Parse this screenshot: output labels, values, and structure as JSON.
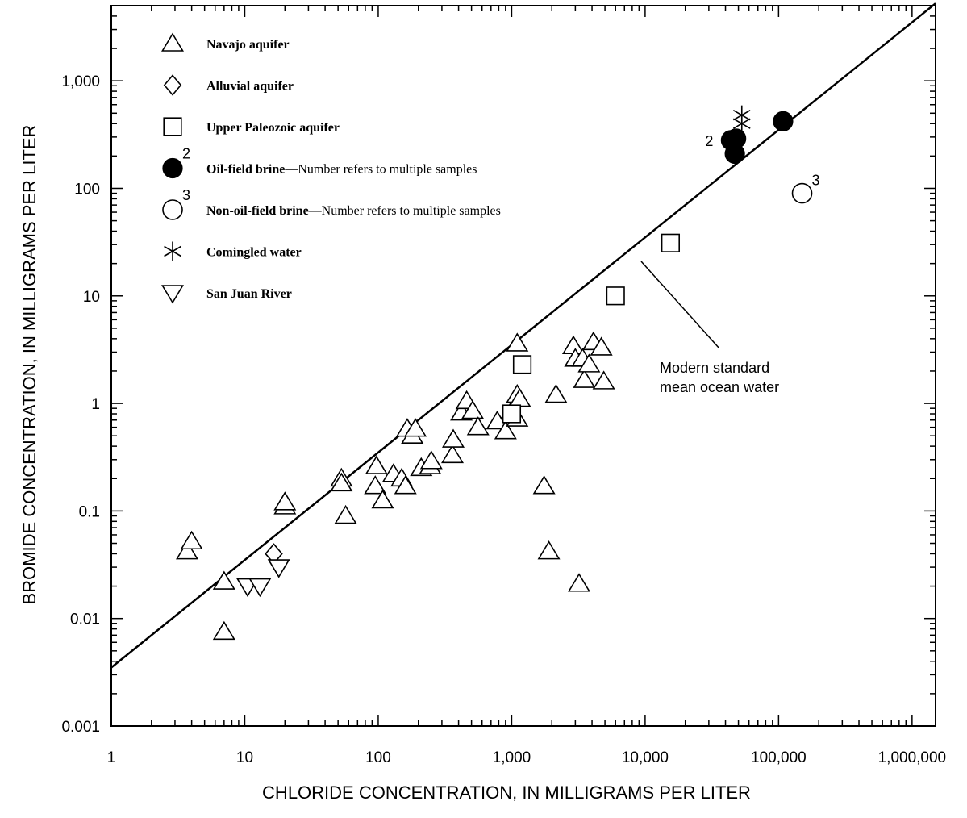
{
  "chart_data": {
    "type": "scatter",
    "xscale": "log",
    "yscale": "log",
    "xlim": [
      1,
      1500000
    ],
    "ylim": [
      0.001,
      5000
    ],
    "xlabel": "CHLORIDE CONCENTRATION, IN MILLIGRAMS PER LITER",
    "ylabel": "BROMIDE CONCENTRATION, IN MILLIGRAMS PER LITER",
    "x_ticks": [
      {
        "value": 1,
        "label": "1"
      },
      {
        "value": 10,
        "label": "10"
      },
      {
        "value": 100,
        "label": "100"
      },
      {
        "value": 1000,
        "label": "1,000"
      },
      {
        "value": 10000,
        "label": "10,000"
      },
      {
        "value": 100000,
        "label": "100,000"
      },
      {
        "value": 1000000,
        "label": "1,000,000"
      }
    ],
    "y_ticks": [
      {
        "value": 0.001,
        "label": "0.001"
      },
      {
        "value": 0.01,
        "label": "0.01"
      },
      {
        "value": 0.1,
        "label": "0.1"
      },
      {
        "value": 1,
        "label": "1"
      },
      {
        "value": 10,
        "label": "10"
      },
      {
        "value": 100,
        "label": "100"
      },
      {
        "value": 1000,
        "label": "1,000"
      }
    ],
    "grid": false,
    "legend_placement": "top-left",
    "reference_line": {
      "label_line1": "Modern standard",
      "label_line2": "mean ocean water",
      "x": [
        1,
        1500000
      ],
      "y": [
        0.0035,
        5250
      ]
    },
    "series": [
      {
        "name": "Navajo aquifer",
        "name_suffix": "",
        "marker": "triangle-up",
        "points": [
          [
            3.7,
            0.042
          ],
          [
            4,
            0.052
          ],
          [
            7,
            0.022
          ],
          [
            7,
            0.0075
          ],
          [
            20,
            0.11
          ],
          [
            20,
            0.12
          ],
          [
            53,
            0.2
          ],
          [
            53,
            0.18
          ],
          [
            57,
            0.09
          ],
          [
            95,
            0.17
          ],
          [
            97,
            0.26
          ],
          [
            108,
            0.125
          ],
          [
            130,
            0.22
          ],
          [
            150,
            0.2
          ],
          [
            160,
            0.17
          ],
          [
            165,
            0.58
          ],
          [
            180,
            0.5
          ],
          [
            190,
            0.58
          ],
          [
            210,
            0.25
          ],
          [
            245,
            0.26
          ],
          [
            250,
            0.29
          ],
          [
            360,
            0.33
          ],
          [
            365,
            0.46
          ],
          [
            420,
            0.82
          ],
          [
            460,
            1.05
          ],
          [
            510,
            0.85
          ],
          [
            560,
            0.6
          ],
          [
            780,
            0.68
          ],
          [
            900,
            0.55
          ],
          [
            1000,
            0.85
          ],
          [
            1100,
            0.72
          ],
          [
            1100,
            1.2
          ],
          [
            1150,
            1.1
          ],
          [
            1100,
            3.6
          ],
          [
            1750,
            0.17
          ],
          [
            1900,
            0.042
          ],
          [
            2150,
            1.2
          ],
          [
            2900,
            3.4
          ],
          [
            3000,
            2.6
          ],
          [
            3200,
            0.021
          ],
          [
            3400,
            2.6
          ],
          [
            3500,
            1.65
          ],
          [
            3800,
            2.3
          ],
          [
            4100,
            3.7
          ],
          [
            4700,
            3.3
          ],
          [
            4900,
            1.6
          ]
        ]
      },
      {
        "name": "Alluvial aquifer",
        "name_suffix": "",
        "marker": "diamond",
        "points": [
          [
            16.5,
            0.04
          ]
        ]
      },
      {
        "name": "Upper Paleozoic aquifer",
        "name_suffix": "",
        "marker": "square",
        "points": [
          [
            1200,
            2.3
          ],
          [
            6000,
            10
          ],
          [
            15500,
            31
          ],
          [
            1000,
            0.8
          ]
        ]
      },
      {
        "name": "Oil-field brine",
        "name_suffix": "—Number refers to multiple samples",
        "legend_count": "2",
        "marker": "filled-circle",
        "points": [
          [
            44000,
            280
          ],
          [
            48000,
            290
          ],
          [
            47000,
            210
          ],
          [
            108000,
            420
          ]
        ]
      },
      {
        "name": "Non-oil-field brine",
        "name_suffix": "—Number refers to multiple samples",
        "legend_count": "3",
        "marker": "open-circle",
        "points": [
          [
            150000,
            90
          ]
        ]
      },
      {
        "name": "Comingled water",
        "name_suffix": "",
        "marker": "asterisk",
        "points": [
          [
            53000,
            480
          ],
          [
            53000,
            400
          ]
        ]
      },
      {
        "name": "San Juan River",
        "name_suffix": "",
        "marker": "triangle-down",
        "points": [
          [
            10.5,
            0.02
          ],
          [
            13,
            0.02
          ],
          [
            18,
            0.03
          ]
        ]
      }
    ],
    "annotations": [
      {
        "text": "2",
        "x": 44000,
        "y": 280,
        "anchor": "left-of-point"
      },
      {
        "text": "3",
        "x": 150000,
        "y": 90,
        "anchor": "upper-right-of-point"
      }
    ]
  }
}
